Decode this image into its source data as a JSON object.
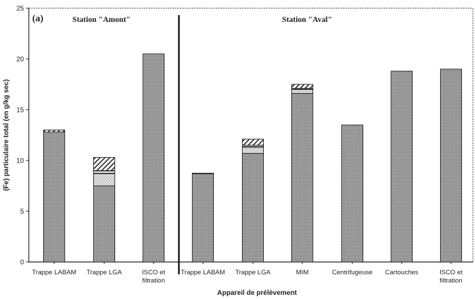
{
  "chart_data": {
    "type": "bar",
    "stacked": true,
    "panel_label": "(a)",
    "ylabel": "(Fe) particulaire total (en g/kg sec)",
    "xlabel": "Appareil de prélèvement",
    "ylim": [
      0,
      25
    ],
    "yticks": [
      0,
      5,
      10,
      15,
      20,
      25
    ],
    "groups": [
      {
        "name": "Station \"Amont\"",
        "categories": [
          "Trappe LABAM",
          "Trappe LGA",
          "ISCO et filtration"
        ]
      },
      {
        "name": "Station \"Aval\"",
        "categories": [
          "Trappe LABAM",
          "Trappe LGA",
          "MIM",
          "Centrifugeuse",
          "Cartouches",
          "ISCO et filtration"
        ]
      }
    ],
    "categories": [
      "Trappe LABAM",
      "Trappe LGA",
      "ISCO et filtration",
      "Trappe LABAM",
      "Trappe LGA",
      "MIM",
      "Centrifugeuse",
      "Cartouches",
      "ISCO et filtration"
    ],
    "series": [
      {
        "values": [
          12.8,
          7.5,
          20.5,
          8.7,
          10.7,
          16.6,
          13.5,
          18.8,
          19.0
        ],
        "pattern": "dense-stipple"
      },
      {
        "values": [
          0,
          1.2,
          0,
          0,
          0.6,
          0.4,
          0,
          0,
          0
        ],
        "pattern": "light-stipple"
      },
      {
        "values": [
          0,
          0.3,
          0,
          0,
          0.2,
          0.1,
          0,
          0,
          0
        ],
        "pattern": "horizontal-lines"
      },
      {
        "values": [
          0.2,
          1.3,
          0,
          0.05,
          0.6,
          0.4,
          0,
          0,
          0
        ],
        "pattern": "diagonal-hatch"
      }
    ]
  }
}
